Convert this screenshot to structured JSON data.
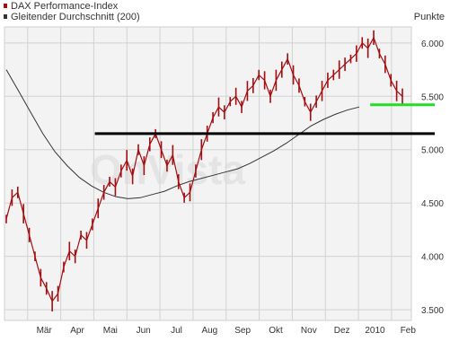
{
  "chart_data": {
    "type": "line",
    "title": "",
    "ylabel": "Punkte",
    "xlabel": "",
    "ylim": [
      3400,
      6150
    ],
    "grid": true,
    "legend_position": "top-left",
    "watermark": "OnVista",
    "x_ticks": [
      "Mär",
      "Apr",
      "Mai",
      "Jun",
      "Jul",
      "Aug",
      "Sep",
      "Okt",
      "Nov",
      "Dez",
      "2010",
      "Feb"
    ],
    "y_ticks": [
      {
        "value": 3500,
        "label": "3.500"
      },
      {
        "value": 4000,
        "label": "4.000"
      },
      {
        "value": 4500,
        "label": "4.500"
      },
      {
        "value": 5000,
        "label": "5.000"
      },
      {
        "value": 5500,
        "label": "5.500"
      },
      {
        "value": 6000,
        "label": "6.000"
      }
    ],
    "series": [
      {
        "name": "DAX Performance-Index",
        "style": "bar-ohlc",
        "color": "#a30d10",
        "values": [
          4350,
          4550,
          4600,
          4400,
          4200,
          4000,
          3800,
          3700,
          3580,
          3650,
          3900,
          4050,
          4000,
          4200,
          4150,
          4300,
          4450,
          4600,
          4700,
          4650,
          4800,
          4900,
          4750,
          5000,
          4850,
          5050,
          5150,
          5000,
          4850,
          4950,
          4700,
          4550,
          4600,
          4800,
          5000,
          5150,
          5300,
          5400,
          5350,
          5450,
          5500,
          5400,
          5550,
          5600,
          5700,
          5650,
          5500,
          5650,
          5750,
          5850,
          5700,
          5600,
          5450,
          5350,
          5450,
          5550,
          5650,
          5700,
          5750,
          5800,
          5850,
          5900,
          6000,
          5950,
          6050,
          5900,
          5800,
          5650,
          5550,
          5500
        ]
      },
      {
        "name": "Gleitender Durchschnitt (200)",
        "style": "line",
        "color": "#333333",
        "values": [
          5750,
          5550,
          5350,
          5150,
          4980,
          4850,
          4740,
          4660,
          4600,
          4560,
          4540,
          4550,
          4580,
          4610,
          4660,
          4700,
          4730,
          4760,
          4790,
          4820,
          4870,
          4930,
          4990,
          5060,
          5140,
          5220,
          5280,
          5330,
          5370,
          5400
        ]
      }
    ],
    "annotations": [
      {
        "type": "horizontal-line",
        "value": 5150,
        "color": "#000000",
        "x_from": 0.21,
        "x_to": 1.0
      },
      {
        "type": "horizontal-line",
        "value": 5420,
        "color": "#22dd22",
        "x_from": 0.85,
        "x_to": 1.0
      }
    ]
  }
}
